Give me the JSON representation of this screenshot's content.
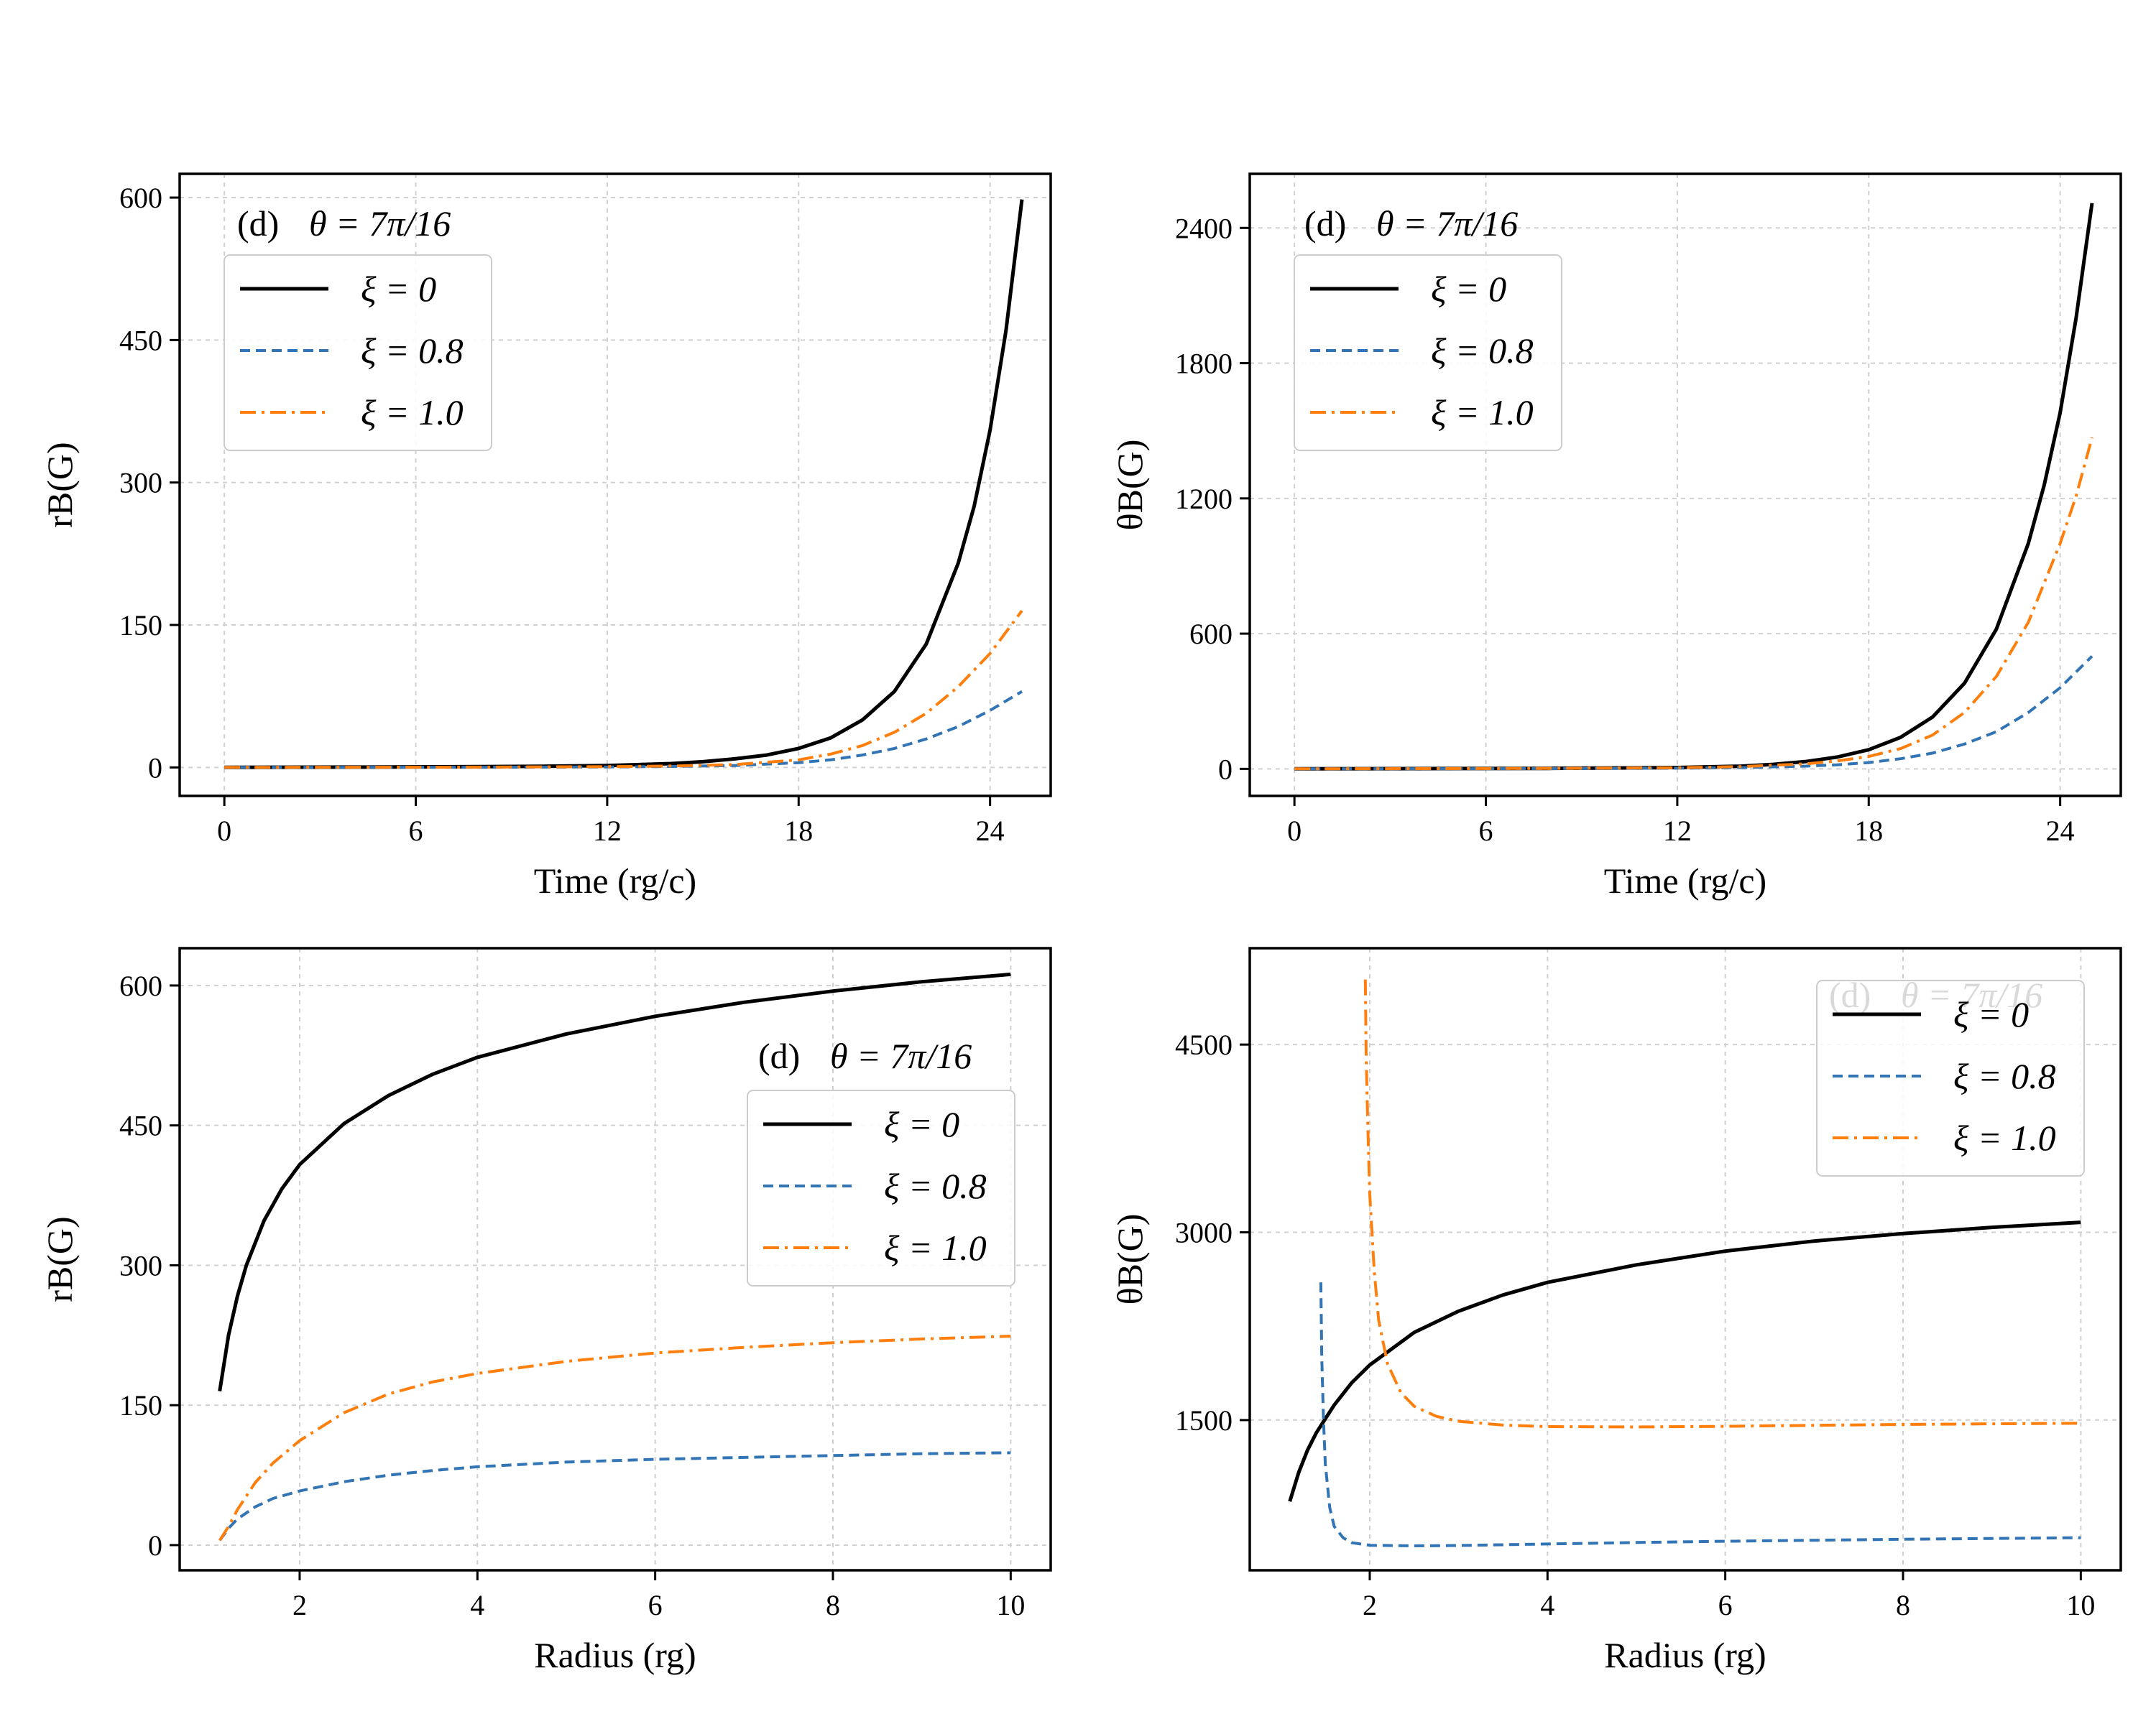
{
  "chart_data": [
    {
      "id": "p1",
      "type": "line",
      "panel_label": "(d)",
      "panel_annotation": "θ = 7π/16",
      "xlabel": "Time (rg/c)",
      "ylabel": "rB(G)",
      "xlim": [
        -1.4,
        25.9
      ],
      "ylim": [
        -30,
        625
      ],
      "xticks": [
        0,
        6,
        12,
        18,
        24
      ],
      "yticks": [
        0,
        150,
        300,
        450,
        600
      ],
      "grid": true,
      "legend_placement": "upper-left",
      "series": [
        {
          "name": "ξ = 0",
          "color": "#000000",
          "style": "solid",
          "x": [
            0,
            4,
            8,
            10,
            12,
            14,
            15,
            16,
            17,
            18,
            19,
            20,
            21,
            22,
            23,
            23.5,
            24,
            24.5,
            25
          ],
          "y": [
            0,
            0.3,
            0.8,
            1.2,
            2,
            4,
            6,
            9,
            13,
            20,
            31,
            50,
            80,
            130,
            215,
            275,
            355,
            460,
            598
          ]
        },
        {
          "name": "ξ = 0.8",
          "color": "#3274b4",
          "style": "dashed",
          "x": [
            0,
            8,
            12,
            14,
            16,
            18,
            19,
            20,
            21,
            22,
            23,
            24,
            25
          ],
          "y": [
            0,
            0.2,
            0.5,
            1,
            2,
            5,
            8,
            13,
            20,
            30,
            43,
            60,
            80
          ]
        },
        {
          "name": "ξ = 1.0",
          "color": "#ff7f0e",
          "style": "dashdot",
          "x": [
            0,
            8,
            12,
            14,
            16,
            18,
            19,
            20,
            21,
            22,
            23,
            24,
            25
          ],
          "y": [
            0,
            0.3,
            0.8,
            1.5,
            3,
            8,
            14,
            23,
            37,
            57,
            85,
            120,
            165
          ]
        }
      ]
    },
    {
      "id": "p2",
      "type": "line",
      "panel_label": "(d)",
      "panel_annotation": "θ = 7π/16",
      "xlabel": "Time (rg/c)",
      "ylabel": "θB(G)",
      "xlim": [
        -1.4,
        25.9
      ],
      "ylim": [
        -120,
        2640
      ],
      "xticks": [
        0,
        6,
        12,
        18,
        24
      ],
      "yticks": [
        0,
        600,
        1200,
        1800,
        2400
      ],
      "grid": true,
      "legend_placement": "upper-left",
      "series": [
        {
          "name": "ξ = 0",
          "color": "#000000",
          "style": "solid",
          "x": [
            0,
            8,
            12,
            14,
            15,
            16,
            17,
            18,
            19,
            20,
            21,
            22,
            23,
            23.5,
            24,
            24.5,
            25
          ],
          "y": [
            0,
            2,
            6,
            12,
            20,
            32,
            52,
            85,
            140,
            230,
            380,
            620,
            1000,
            1260,
            1580,
            2000,
            2510
          ]
        },
        {
          "name": "ξ = 0.8",
          "color": "#3274b4",
          "style": "dashed",
          "x": [
            0,
            8,
            12,
            14,
            16,
            17,
            18,
            19,
            20,
            21,
            22,
            23,
            24,
            25
          ],
          "y": [
            0,
            1,
            3,
            6,
            12,
            18,
            28,
            45,
            70,
            110,
            165,
            250,
            360,
            500
          ]
        },
        {
          "name": "ξ = 1.0",
          "color": "#ff7f0e",
          "style": "dashdot",
          "x": [
            0,
            8,
            12,
            14,
            16,
            17,
            18,
            19,
            20,
            21,
            22,
            23,
            24,
            24.5,
            25
          ],
          "y": [
            0,
            2,
            5,
            10,
            22,
            35,
            55,
            90,
            150,
            250,
            410,
            650,
            1000,
            1210,
            1470
          ]
        }
      ]
    },
    {
      "id": "p3",
      "type": "line",
      "panel_label": "(d)",
      "panel_annotation": "θ = 7π/16",
      "xlabel": "Radius (rg)",
      "ylabel": "rB(G)",
      "xlim": [
        0.65,
        10.45
      ],
      "ylim": [
        -27,
        640
      ],
      "xticks": [
        2,
        4,
        6,
        8,
        10
      ],
      "yticks": [
        0,
        150,
        300,
        450,
        600
      ],
      "grid": true,
      "legend_placement": "center-right",
      "series": [
        {
          "name": "ξ = 0",
          "color": "#000000",
          "style": "solid",
          "x": [
            1.1,
            1.2,
            1.3,
            1.4,
            1.6,
            1.8,
            2.0,
            2.5,
            3.0,
            3.5,
            4.0,
            5.0,
            6.0,
            7.0,
            8.0,
            9.0,
            10.0
          ],
          "y": [
            165,
            225,
            267,
            300,
            348,
            382,
            408,
            452,
            482,
            505,
            523,
            548,
            567,
            582,
            594,
            604,
            612
          ]
        },
        {
          "name": "ξ = 0.8",
          "color": "#3274b4",
          "style": "dashed",
          "x": [
            1.1,
            1.2,
            1.3,
            1.5,
            1.7,
            2.0,
            2.5,
            3.0,
            3.5,
            4.0,
            5.0,
            6.0,
            7.0,
            8.0,
            9.0,
            10.0
          ],
          "y": [
            5,
            18,
            28,
            41,
            50,
            58,
            68,
            75,
            80,
            84,
            89,
            92,
            94,
            96,
            98,
            99
          ]
        },
        {
          "name": "ξ = 1.0",
          "color": "#ff7f0e",
          "style": "dashdot",
          "x": [
            1.1,
            1.2,
            1.3,
            1.5,
            1.7,
            2.0,
            2.5,
            3.0,
            3.5,
            4.0,
            5.0,
            6.0,
            7.0,
            8.0,
            9.0,
            10.0
          ],
          "y": [
            5,
            20,
            38,
            67,
            88,
            112,
            142,
            162,
            175,
            184,
            197,
            206,
            212,
            217,
            221,
            224
          ]
        }
      ]
    },
    {
      "id": "p4",
      "type": "line",
      "panel_label": "(d)",
      "panel_annotation": "θ = 7π/16",
      "xlabel": "Radius (rg)",
      "ylabel": "θB(G)",
      "xlim": [
        0.65,
        10.45
      ],
      "ylim": [
        300,
        5270
      ],
      "xticks": [
        2,
        4,
        6,
        8,
        10
      ],
      "yticks": [
        1500,
        3000,
        4500
      ],
      "grid": true,
      "legend_placement": "upper-right",
      "series": [
        {
          "name": "ξ = 0",
          "color": "#000000",
          "style": "solid",
          "x": [
            1.1,
            1.2,
            1.3,
            1.4,
            1.6,
            1.8,
            2.0,
            2.5,
            3.0,
            3.5,
            4.0,
            5.0,
            6.0,
            7.0,
            8.0,
            9.0,
            10.0
          ],
          "y": [
            850,
            1080,
            1260,
            1400,
            1620,
            1800,
            1940,
            2200,
            2370,
            2500,
            2600,
            2740,
            2850,
            2930,
            2990,
            3040,
            3080
          ]
        },
        {
          "name": "ξ = 0.8",
          "color": "#3274b4",
          "style": "dashed",
          "x": [
            1.45,
            1.46,
            1.48,
            1.5,
            1.55,
            1.6,
            1.7,
            1.8,
            2.0,
            2.5,
            3.0,
            4.0,
            5.0,
            6.0,
            7.0,
            8.0,
            9.0,
            10.0
          ],
          "y": [
            2600,
            2000,
            1500,
            1150,
            800,
            650,
            560,
            520,
            500,
            495,
            498,
            510,
            522,
            532,
            540,
            548,
            554,
            560
          ]
        },
        {
          "name": "ξ = 1.0",
          "color": "#ff7f0e",
          "style": "dashdot",
          "x": [
            1.95,
            1.96,
            1.98,
            2.0,
            2.05,
            2.1,
            2.2,
            2.35,
            2.5,
            2.75,
            3.0,
            3.5,
            4.0,
            5.0,
            6.0,
            7.0,
            8.0,
            9.0,
            10.0
          ],
          "y": [
            5020,
            4400,
            3800,
            3300,
            2700,
            2300,
            1950,
            1720,
            1610,
            1530,
            1490,
            1460,
            1448,
            1445,
            1450,
            1458,
            1465,
            1470,
            1475
          ]
        }
      ]
    }
  ]
}
